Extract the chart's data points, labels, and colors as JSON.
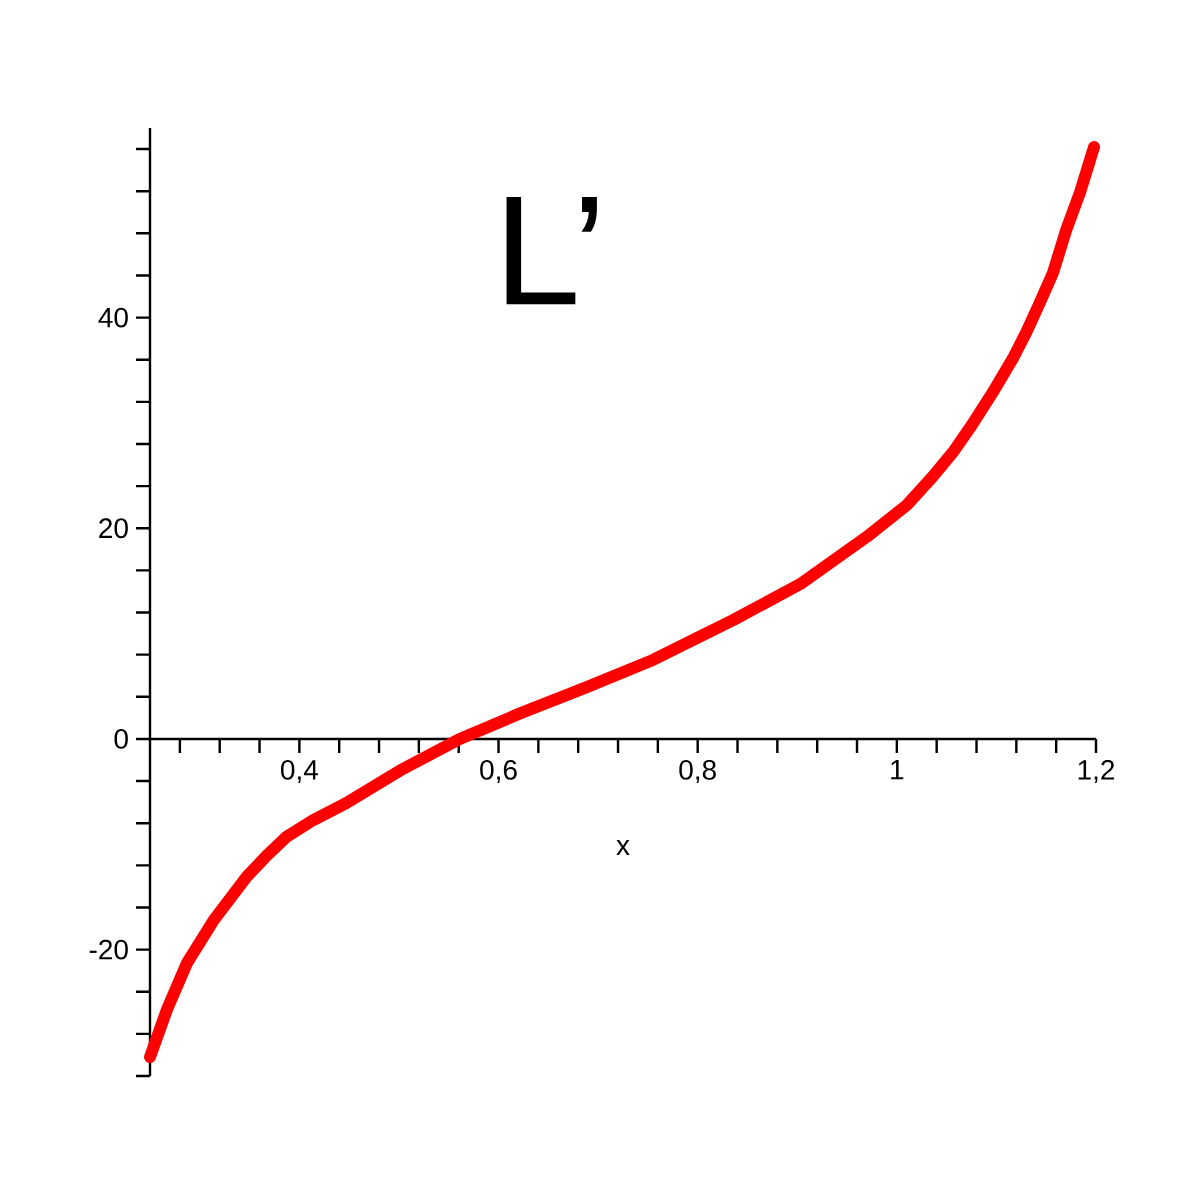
{
  "chart_data": {
    "type": "line",
    "title": "L’",
    "xlabel": "x",
    "x": [
      0.25,
      0.267,
      0.287,
      0.314,
      0.347,
      0.367,
      0.387,
      0.414,
      0.447,
      0.501,
      0.561,
      0.621,
      0.688,
      0.755,
      0.836,
      0.903,
      0.97,
      1.01,
      1.036,
      1.057,
      1.076,
      1.097,
      1.117,
      1.13,
      1.143,
      1.157,
      1.17,
      1.184,
      1.198
    ],
    "series": [
      {
        "color": "#ff0000",
        "values": [
          -30.2,
          -25.7,
          -21.3,
          -17.2,
          -13.1,
          -11.1,
          -9.3,
          -7.7,
          -6.1,
          -3.0,
          0,
          2.4,
          4.9,
          7.5,
          11.3,
          14.7,
          19.2,
          22.2,
          24.9,
          27.3,
          29.9,
          33,
          36.2,
          38.6,
          41.3,
          44.3,
          48.3,
          51.9,
          56.2
        ]
      }
    ],
    "xlim": [
      0.25,
      1.2
    ],
    "ylim": [
      -32,
      58
    ],
    "xticks": [
      {
        "value": 0.28,
        "label": null
      },
      {
        "value": 0.32,
        "label": null
      },
      {
        "value": 0.36,
        "label": null
      },
      {
        "value": 0.4,
        "label": "0,4"
      },
      {
        "value": 0.44,
        "label": null
      },
      {
        "value": 0.48,
        "label": null
      },
      {
        "value": 0.52,
        "label": null
      },
      {
        "value": 0.56,
        "label": null
      },
      {
        "value": 0.6,
        "label": "0,6"
      },
      {
        "value": 0.64,
        "label": null
      },
      {
        "value": 0.68,
        "label": null
      },
      {
        "value": 0.72,
        "label": null
      },
      {
        "value": 0.76,
        "label": null
      },
      {
        "value": 0.8,
        "label": "0,8"
      },
      {
        "value": 0.84,
        "label": null
      },
      {
        "value": 0.88,
        "label": null
      },
      {
        "value": 0.92,
        "label": null
      },
      {
        "value": 0.96,
        "label": null
      },
      1,
      {
        "value": 1.04,
        "label": null
      },
      {
        "value": 1.08,
        "label": null
      },
      {
        "value": 1.12,
        "label": null
      },
      {
        "value": 1.16,
        "label": null
      },
      {
        "value": 1.2,
        "label": "1,2"
      }
    ],
    "yticks": [
      {
        "value": -32,
        "label": null
      },
      {
        "value": -28,
        "label": null
      },
      {
        "value": -24,
        "label": null
      },
      -20,
      {
        "value": -16,
        "label": null
      },
      {
        "value": -12,
        "label": null
      },
      {
        "value": -8,
        "label": null
      },
      {
        "value": -4,
        "label": null
      },
      0,
      {
        "value": 4,
        "label": null
      },
      {
        "value": 8,
        "label": null
      },
      {
        "value": 12,
        "label": null
      },
      {
        "value": 16,
        "label": null
      },
      20,
      {
        "value": 24,
        "label": null
      },
      {
        "value": 28,
        "label": null
      },
      {
        "value": 32,
        "label": null
      },
      {
        "value": 36,
        "label": null
      },
      40,
      {
        "value": 44,
        "label": null
      },
      {
        "value": 48,
        "label": null
      },
      {
        "value": 52,
        "label": null
      },
      {
        "value": 56,
        "label": null
      }
    ],
    "marker": "none",
    "line_style": "solid"
  }
}
